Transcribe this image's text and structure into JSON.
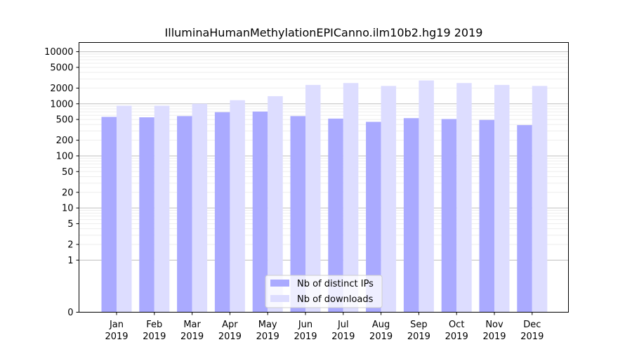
{
  "chart_data": {
    "type": "bar",
    "title": "IlluminaHumanMethylationEPICanno.ilm10b2.hg19 2019",
    "xlabel": "",
    "ylabel": "",
    "y_scale": "symlog",
    "ylim": [
      0,
      15000
    ],
    "y_ticks": [
      0,
      1,
      2,
      5,
      10,
      20,
      50,
      100,
      200,
      500,
      1000,
      2000,
      5000,
      10000
    ],
    "y_tick_labels": [
      "0",
      "1",
      "2",
      "5",
      "10",
      "20",
      "50",
      "100",
      "200",
      "500",
      "1000",
      "2000",
      "5000",
      "10000"
    ],
    "grid": "on",
    "legend_position": "bottom-center",
    "categories": [
      {
        "month": "Jan",
        "year": "2019"
      },
      {
        "month": "Feb",
        "year": "2019"
      },
      {
        "month": "Mar",
        "year": "2019"
      },
      {
        "month": "Apr",
        "year": "2019"
      },
      {
        "month": "May",
        "year": "2019"
      },
      {
        "month": "Jun",
        "year": "2019"
      },
      {
        "month": "Jul",
        "year": "2019"
      },
      {
        "month": "Aug",
        "year": "2019"
      },
      {
        "month": "Sep",
        "year": "2019"
      },
      {
        "month": "Oct",
        "year": "2019"
      },
      {
        "month": "Nov",
        "year": "2019"
      },
      {
        "month": "Dec",
        "year": "2019"
      }
    ],
    "series": [
      {
        "name": "Nb of distinct IPs",
        "color": "#aaaaff",
        "values": [
          560,
          550,
          580,
          690,
          710,
          580,
          520,
          450,
          530,
          510,
          490,
          390
        ]
      },
      {
        "name": "Nb of downloads",
        "color": "#ddddff",
        "values": [
          920,
          920,
          1000,
          1170,
          1400,
          2300,
          2500,
          2200,
          2800,
          2500,
          2300,
          2200
        ]
      }
    ]
  }
}
